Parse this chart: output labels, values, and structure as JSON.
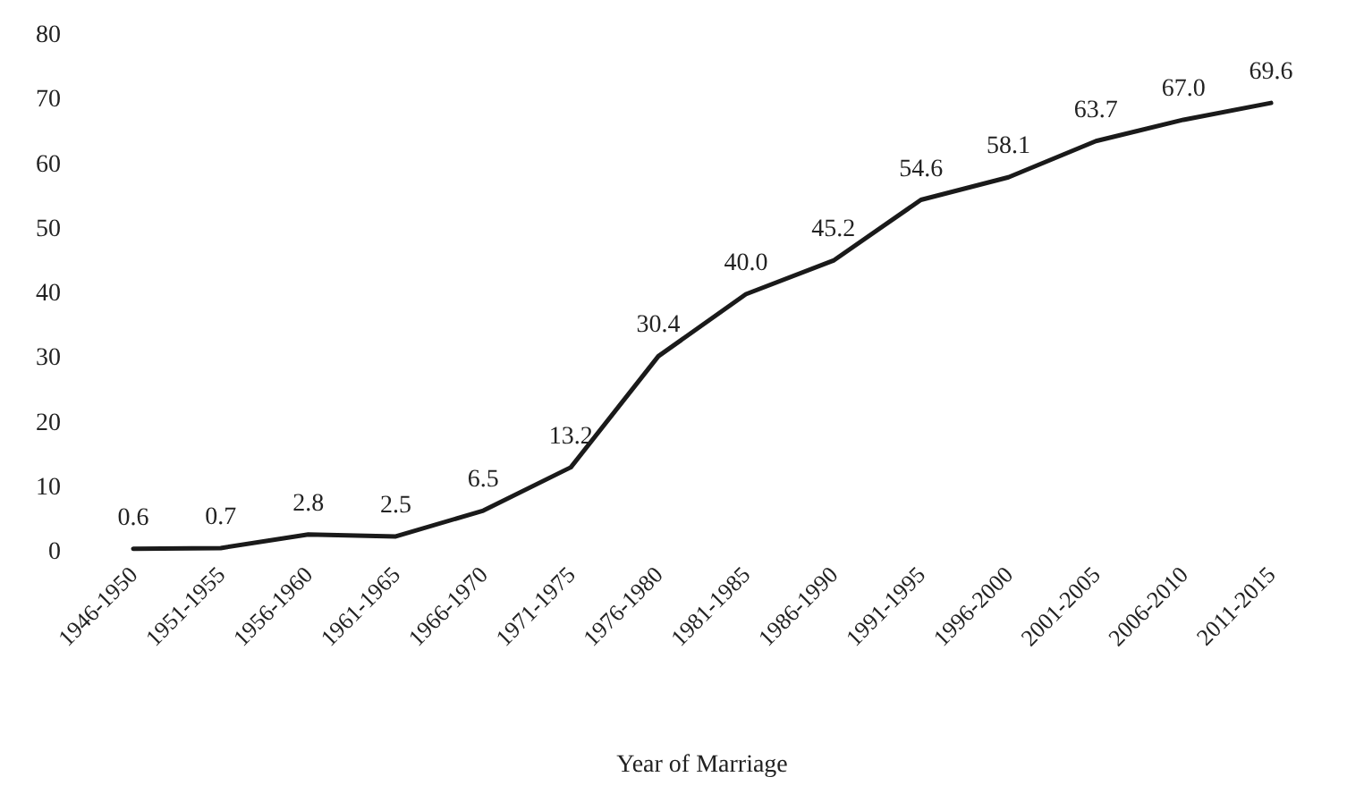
{
  "chart_data": {
    "type": "line",
    "xlabel": "Year of Marriage",
    "categories": [
      "1946-1950",
      "1951-1955",
      "1956-1960",
      "1961-1965",
      "1966-1970",
      "1971-1975",
      "1976-1980",
      "1981-1985",
      "1986-1990",
      "1991-1995",
      "1996-2000",
      "2001-2005",
      "2006-2010",
      "2011-2015"
    ],
    "series": [
      {
        "color": "#1a1a1a",
        "values": [
          0.6,
          0.7,
          2.8,
          2.5,
          6.5,
          13.2,
          30.4,
          40.0,
          45.2,
          54.6,
          58.1,
          63.7,
          67.0,
          69.6
        ],
        "value_labels": [
          "0.6",
          "0.7",
          "2.8",
          "2.5",
          "6.5",
          "13.2",
          "30.4",
          "40.0",
          "45.2",
          "54.6",
          "58.1",
          "63.7",
          "67.0",
          "69.6"
        ]
      }
    ],
    "ylim": [
      0,
      80
    ],
    "yticks": [
      0,
      10,
      20,
      30,
      40,
      50,
      60,
      70,
      80
    ],
    "grid": false,
    "marker": "none",
    "line_style": "solid"
  }
}
